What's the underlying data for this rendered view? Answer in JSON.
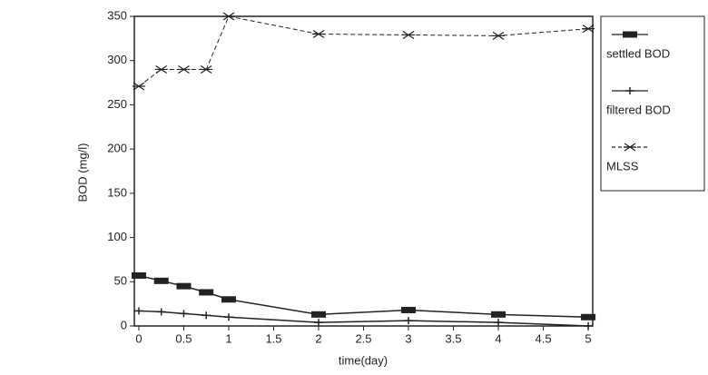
{
  "chart_data": {
    "type": "line",
    "x": [
      0,
      0.25,
      0.5,
      0.75,
      1,
      2,
      3,
      4,
      5
    ],
    "series": [
      {
        "name": "settled BOD",
        "color": "#222222",
        "values": [
          57,
          51,
          45,
          38,
          30,
          13,
          18,
          13,
          10
        ]
      },
      {
        "name": "filtered BOD",
        "color": "#222222",
        "values": [
          17,
          16,
          14,
          12,
          10,
          4,
          6,
          4,
          0
        ]
      },
      {
        "name": "MLSS",
        "color": "#222222",
        "values": [
          271,
          290,
          290,
          290,
          350,
          330,
          329,
          328,
          336
        ]
      }
    ],
    "xlabel": "time(day)",
    "ylabel": "BOD (mg/l)",
    "xlim": [
      -0.05,
      5.05
    ],
    "ylim": [
      0,
      350
    ],
    "xticks": [
      0,
      0.5,
      1,
      1.5,
      2,
      2.5,
      3,
      3.5,
      4,
      4.5,
      5
    ],
    "yticks": [
      0,
      50,
      100,
      150,
      200,
      250,
      300,
      350
    ],
    "legend": "right"
  }
}
